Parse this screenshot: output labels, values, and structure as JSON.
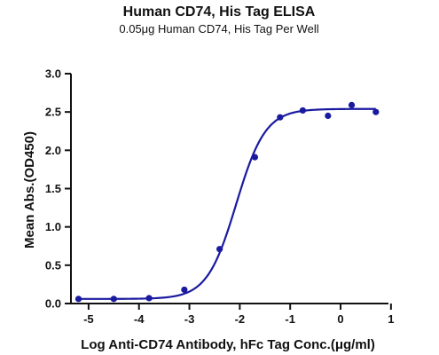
{
  "chart_data": {
    "type": "scatter",
    "title": "Human CD74, His Tag ELISA",
    "subtitle": "0.05μg Human CD74, His Tag Per Well",
    "xlabel": "Log Anti-CD74 Antibody, hFc Tag Conc.(μg/ml)",
    "ylabel": "Mean Abs.(OD450)",
    "xlim": [
      -5.35,
      0.95
    ],
    "ylim": [
      0,
      3.0
    ],
    "x_ticks": [
      -5,
      -4,
      -3,
      -2,
      -1,
      0,
      1
    ],
    "x_tick_labels": [
      "-5",
      "-4",
      "-3",
      "-2",
      "-1",
      "0",
      "1"
    ],
    "y_ticks": [
      0,
      0.5,
      1.0,
      1.5,
      2.0,
      2.5,
      3.0
    ],
    "y_tick_labels": [
      "0.0",
      "0.5",
      "1.0",
      "1.5",
      "2.0",
      "2.5",
      "3.0"
    ],
    "series": [
      {
        "points": [
          {
            "x": -5.2,
            "y": 0.06
          },
          {
            "x": -4.5,
            "y": 0.06
          },
          {
            "x": -3.8,
            "y": 0.07
          },
          {
            "x": -3.1,
            "y": 0.18
          },
          {
            "x": -2.4,
            "y": 0.71
          },
          {
            "x": -1.7,
            "y": 1.91
          },
          {
            "x": -1.2,
            "y": 2.43
          },
          {
            "x": -0.75,
            "y": 2.52
          },
          {
            "x": -0.25,
            "y": 2.45
          },
          {
            "x": 0.22,
            "y": 2.59
          },
          {
            "x": 0.7,
            "y": 2.5
          }
        ],
        "fit": {
          "model": "4PL",
          "bottom": 0.06,
          "top": 2.54,
          "log_ec50": -2.07,
          "hill": 1.5,
          "x_range": [
            -5.2,
            0.7
          ]
        }
      }
    ],
    "colors": {
      "series": "#1a1aa0",
      "axis": "#111111"
    },
    "grid": false,
    "legend": "none"
  }
}
